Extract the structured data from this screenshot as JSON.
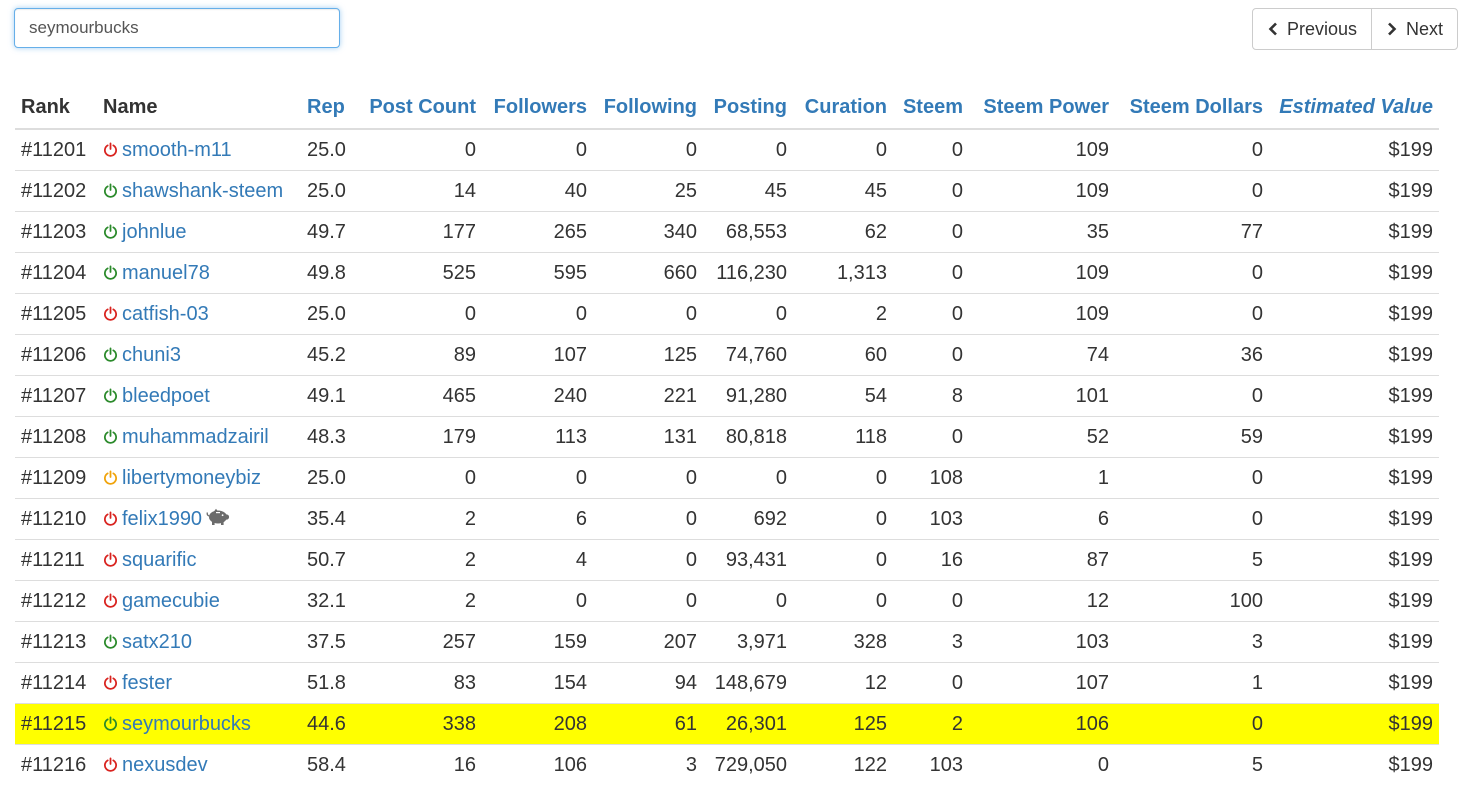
{
  "search": {
    "value": "seymourbucks"
  },
  "pager": {
    "previous_label": "Previous",
    "next_label": "Next"
  },
  "colors": {
    "active": "#2b8a2b",
    "inactive": "#d9231f",
    "idle": "#f0a30a",
    "highlight": "#ffff00",
    "link": "#337ab7"
  },
  "table": {
    "headers": [
      "Rank",
      "Name",
      "Rep",
      "Post Count",
      "Followers",
      "Following",
      "Posting",
      "Curation",
      "Steem",
      "Steem Power",
      "Steem Dollars",
      "Estimated Value"
    ],
    "rows": [
      {
        "rank": "#11201",
        "name": "smooth-m11",
        "status": "red",
        "rep": "25.0",
        "posts": "0",
        "followers": "0",
        "following": "0",
        "posting": "0",
        "curation": "0",
        "steem": "0",
        "sp": "109",
        "sbd": "0",
        "value": "$199"
      },
      {
        "rank": "#11202",
        "name": "shawshank-steem",
        "status": "green",
        "rep": "25.0",
        "posts": "14",
        "followers": "40",
        "following": "25",
        "posting": "45",
        "curation": "45",
        "steem": "0",
        "sp": "109",
        "sbd": "0",
        "value": "$199"
      },
      {
        "rank": "#11203",
        "name": "johnlue",
        "status": "green",
        "rep": "49.7",
        "posts": "177",
        "followers": "265",
        "following": "340",
        "posting": "68,553",
        "curation": "62",
        "steem": "0",
        "sp": "35",
        "sbd": "77",
        "value": "$199"
      },
      {
        "rank": "#11204",
        "name": "manuel78",
        "status": "green",
        "rep": "49.8",
        "posts": "525",
        "followers": "595",
        "following": "660",
        "posting": "116,230",
        "curation": "1,313",
        "steem": "0",
        "sp": "109",
        "sbd": "0",
        "value": "$199"
      },
      {
        "rank": "#11205",
        "name": "catfish-03",
        "status": "red",
        "rep": "25.0",
        "posts": "0",
        "followers": "0",
        "following": "0",
        "posting": "0",
        "curation": "2",
        "steem": "0",
        "sp": "109",
        "sbd": "0",
        "value": "$199"
      },
      {
        "rank": "#11206",
        "name": "chuni3",
        "status": "green",
        "rep": "45.2",
        "posts": "89",
        "followers": "107",
        "following": "125",
        "posting": "74,760",
        "curation": "60",
        "steem": "0",
        "sp": "74",
        "sbd": "36",
        "value": "$199"
      },
      {
        "rank": "#11207",
        "name": "bleedpoet",
        "status": "green",
        "rep": "49.1",
        "posts": "465",
        "followers": "240",
        "following": "221",
        "posting": "91,280",
        "curation": "54",
        "steem": "8",
        "sp": "101",
        "sbd": "0",
        "value": "$199"
      },
      {
        "rank": "#11208",
        "name": "muhammadzairil",
        "status": "green",
        "rep": "48.3",
        "posts": "179",
        "followers": "113",
        "following": "131",
        "posting": "80,818",
        "curation": "118",
        "steem": "0",
        "sp": "52",
        "sbd": "59",
        "value": "$199"
      },
      {
        "rank": "#11209",
        "name": "libertymoneybiz",
        "status": "orange",
        "rep": "25.0",
        "posts": "0",
        "followers": "0",
        "following": "0",
        "posting": "0",
        "curation": "0",
        "steem": "108",
        "sp": "1",
        "sbd": "0",
        "value": "$199"
      },
      {
        "rank": "#11210",
        "name": "felix1990",
        "status": "red",
        "pig": true,
        "rep": "35.4",
        "posts": "2",
        "followers": "6",
        "following": "0",
        "posting": "692",
        "curation": "0",
        "steem": "103",
        "sp": "6",
        "sbd": "0",
        "value": "$199"
      },
      {
        "rank": "#11211",
        "name": "squarific",
        "status": "red",
        "rep": "50.7",
        "posts": "2",
        "followers": "4",
        "following": "0",
        "posting": "93,431",
        "curation": "0",
        "steem": "16",
        "sp": "87",
        "sbd": "5",
        "value": "$199"
      },
      {
        "rank": "#11212",
        "name": "gamecubie",
        "status": "red",
        "rep": "32.1",
        "posts": "2",
        "followers": "0",
        "following": "0",
        "posting": "0",
        "curation": "0",
        "steem": "0",
        "sp": "12",
        "sbd": "100",
        "value": "$199"
      },
      {
        "rank": "#11213",
        "name": "satx210",
        "status": "green",
        "rep": "37.5",
        "posts": "257",
        "followers": "159",
        "following": "207",
        "posting": "3,971",
        "curation": "328",
        "steem": "3",
        "sp": "103",
        "sbd": "3",
        "value": "$199"
      },
      {
        "rank": "#11214",
        "name": "fester",
        "status": "red",
        "rep": "51.8",
        "posts": "83",
        "followers": "154",
        "following": "94",
        "posting": "148,679",
        "curation": "12",
        "steem": "0",
        "sp": "107",
        "sbd": "1",
        "value": "$199"
      },
      {
        "rank": "#11215",
        "name": "seymourbucks",
        "status": "green",
        "highlight": true,
        "rep": "44.6",
        "posts": "338",
        "followers": "208",
        "following": "61",
        "posting": "26,301",
        "curation": "125",
        "steem": "2",
        "sp": "106",
        "sbd": "0",
        "value": "$199"
      },
      {
        "rank": "#11216",
        "name": "nexusdev",
        "status": "red",
        "rep": "58.4",
        "posts": "16",
        "followers": "106",
        "following": "3",
        "posting": "729,050",
        "curation": "122",
        "steem": "103",
        "sp": "0",
        "sbd": "5",
        "value": "$199"
      }
    ]
  }
}
